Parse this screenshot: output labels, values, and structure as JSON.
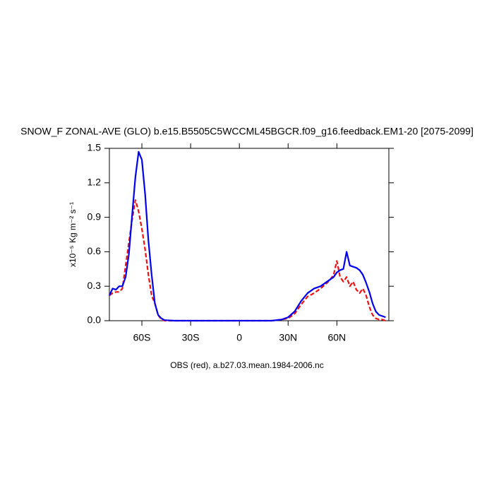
{
  "chart_data": {
    "type": "line",
    "title": "SNOW_F ZONAL-AVE (GLO) b.e15.B5505C5WCCML45BGCR.f09_g16.feedback.EM1-20 [2075-2099]",
    "ylabel": "x10⁻⁵ Kg m⁻² s⁻¹",
    "footer": "OBS (red), a.b27.03.mean.1984-2006.nc",
    "x": [
      -80,
      -78,
      -76,
      -74,
      -72,
      -70,
      -68,
      -66,
      -64,
      -62,
      -60,
      -58,
      -56,
      -54,
      -52,
      -50,
      -48,
      -46,
      -40,
      -20,
      0,
      20,
      26,
      30,
      34,
      38,
      42,
      46,
      50,
      54,
      56,
      58,
      60,
      62,
      64,
      66,
      68,
      70,
      72,
      74,
      76,
      78,
      80,
      82,
      84,
      86,
      88,
      90
    ],
    "series": [
      {
        "color": "#0000ee",
        "dash": "solid",
        "values": [
          0.22,
          0.28,
          0.27,
          0.3,
          0.3,
          0.38,
          0.58,
          0.92,
          1.25,
          1.47,
          1.4,
          1.1,
          0.7,
          0.4,
          0.15,
          0.05,
          0.02,
          0.005,
          0,
          0,
          0,
          0,
          0.01,
          0.03,
          0.08,
          0.17,
          0.24,
          0.28,
          0.3,
          0.34,
          0.36,
          0.38,
          0.42,
          0.44,
          0.45,
          0.6,
          0.48,
          0.47,
          0.46,
          0.44,
          0.4,
          0.33,
          0.25,
          0.15,
          0.08,
          0.05,
          0.04,
          0.03
        ]
      },
      {
        "color": "#ee1111",
        "dash": "dashed",
        "values": [
          0.22,
          0.24,
          0.25,
          0.25,
          0.28,
          0.48,
          0.68,
          0.88,
          1.05,
          0.95,
          0.8,
          0.62,
          0.4,
          0.22,
          0.15,
          0.05,
          0.01,
          0,
          0,
          0,
          0,
          0,
          0.01,
          0.02,
          0.06,
          0.14,
          0.21,
          0.24,
          0.28,
          0.33,
          0.36,
          0.4,
          0.52,
          0.38,
          0.34,
          0.38,
          0.3,
          0.34,
          0.27,
          0.24,
          0.28,
          0.22,
          0.12,
          0.05,
          0.02,
          0.01,
          0.01,
          0
        ]
      }
    ],
    "xlim": [
      -80,
      92
    ],
    "xticks": [
      {
        "value": -60,
        "label": "60S"
      },
      {
        "value": -30,
        "label": "30S"
      },
      0,
      {
        "value": 30,
        "label": "30N"
      },
      {
        "value": 60,
        "label": "60N"
      }
    ],
    "ylim": [
      0,
      1.5
    ],
    "yticks": [
      {
        "value": 0,
        "label": "0.0"
      },
      0.3,
      0.6,
      0.9,
      1.2,
      1.5
    ]
  }
}
